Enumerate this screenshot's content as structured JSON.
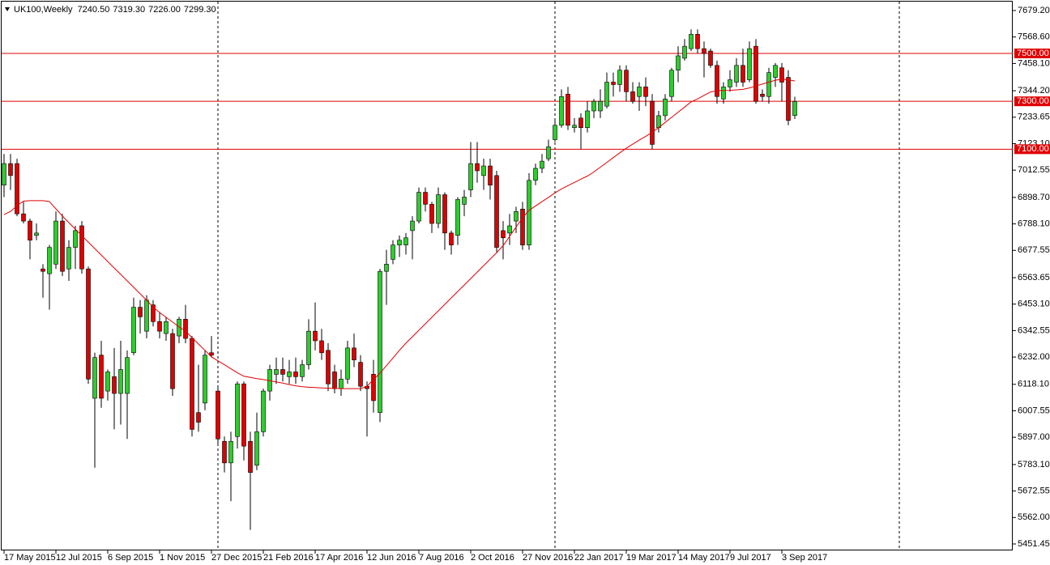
{
  "chart_data": {
    "type": "candlestick",
    "title": "UK100,Weekly",
    "header_ohlc": [
      "7240.50",
      "7319.30",
      "7226.00",
      "7299.30"
    ],
    "up_color": "#2ecc2e",
    "down_color": "#dd0000",
    "ma_color": "#e00000",
    "level_color": "#e00000",
    "ylim": [
      5424.4,
      7706.2
    ],
    "yticks": [
      {
        "value": 7679.2,
        "label": "7679.20"
      },
      {
        "value": 7568.6,
        "label": "7568.60"
      },
      {
        "value": 7458.1,
        "label": "7458.10"
      },
      {
        "value": 7344.2,
        "label": "7344.20"
      },
      {
        "value": 7233.65,
        "label": "7233.65"
      },
      {
        "value": 7123.1,
        "label": "7123.10"
      },
      {
        "value": 7012.55,
        "label": "7012.55"
      },
      {
        "value": 6898.7,
        "label": "6898.70"
      },
      {
        "value": 6788.1,
        "label": "6788.10"
      },
      {
        "value": 6677.55,
        "label": "6677.55"
      },
      {
        "value": 6563.65,
        "label": "6563.65"
      },
      {
        "value": 6453.1,
        "label": "6453.10"
      },
      {
        "value": 6342.55,
        "label": "6342.55"
      },
      {
        "value": 6232,
        "label": "6232.00"
      },
      {
        "value": 6118.1,
        "label": "6118.10"
      },
      {
        "value": 6007.55,
        "label": "6007.55"
      },
      {
        "value": 5897,
        "label": "5897.00"
      },
      {
        "value": 5783.1,
        "label": "5783.10"
      },
      {
        "value": 5672.55,
        "label": "5672.55"
      },
      {
        "value": 5562,
        "label": "5562.00"
      },
      {
        "value": 5451.45,
        "label": "5451.45"
      }
    ],
    "levels": [
      {
        "value": 7500,
        "label": "7500.00"
      },
      {
        "value": 7300,
        "label": "7300.00"
      },
      {
        "value": 7100,
        "label": "7100.00"
      }
    ],
    "categories": [
      "17 May 2015",
      null,
      null,
      null,
      null,
      null,
      null,
      null,
      "12 Jul 2015",
      null,
      null,
      null,
      null,
      null,
      null,
      null,
      "6 Sep 2015",
      null,
      null,
      null,
      null,
      null,
      null,
      null,
      "1 Nov 2015",
      null,
      null,
      null,
      null,
      null,
      null,
      null,
      "27 Dec 2015",
      null,
      null,
      null,
      null,
      null,
      null,
      null,
      "21 Feb 2016",
      null,
      null,
      null,
      null,
      null,
      null,
      null,
      "17 Apr 2016",
      null,
      null,
      null,
      null,
      null,
      null,
      null,
      "12 Jun 2016",
      null,
      null,
      null,
      null,
      null,
      null,
      null,
      "7 Aug 2016",
      null,
      null,
      null,
      null,
      null,
      null,
      null,
      "2 Oct 2016",
      null,
      null,
      null,
      null,
      null,
      null,
      null,
      "27 Nov 2016",
      null,
      null,
      null,
      null,
      null,
      null,
      null,
      "22 Jan 2017",
      null,
      null,
      null,
      null,
      null,
      null,
      null,
      "19 Mar 2017",
      null,
      null,
      null,
      null,
      null,
      null,
      null,
      "14 May 2017",
      null,
      null,
      null,
      null,
      null,
      null,
      null,
      "9 Jul 2017",
      null,
      null,
      null,
      null,
      null,
      null,
      null,
      "3 Sep 2017",
      null,
      null
    ],
    "open": [
      6950,
      7040,
      7040,
      6830,
      6800,
      6740,
      6600,
      6580,
      6620,
      6800,
      6600,
      6690,
      6780,
      6600,
      6060,
      6240,
      6090,
      6150,
      6080,
      6080,
      6250,
      6440,
      6340,
      6450,
      6380,
      6330,
      6330,
      6320,
      6390,
      6310,
      6000,
      6040,
      6250,
      6090,
      5880,
      5790,
      5900,
      6120,
      5880,
      5780,
      5920,
      6090,
      6160,
      6180,
      6150,
      6170,
      6150,
      6200,
      6340,
      6300,
      6260,
      6170,
      6100,
      6140,
      6270,
      6210,
      6110,
      6160,
      6000,
      6590,
      6640,
      6700,
      6700,
      6760,
      6800,
      6920,
      6870,
      6790,
      6910,
      6750,
      6740,
      6870,
      6930,
      7040,
      6990,
      7030,
      6990,
      6760,
      6750,
      6800,
      6850,
      6700,
      6970,
      7020,
      7060,
      7140,
      7200,
      7330,
      7190,
      7230,
      7190,
      7260,
      7260,
      7280,
      7380,
      7370,
      7430,
      7340,
      7320,
      7360,
      7300,
      7190,
      7240,
      7320,
      7430,
      7480,
      7520,
      7580,
      7520,
      7510,
      7450,
      7310,
      7360,
      7380,
      7450,
      7390,
      7530,
      7330,
      7320,
      7400,
      7440,
      7400,
      7240.5
    ],
    "high": [
      7080,
      7080,
      7060,
      6880,
      6810,
      6790,
      6620,
      6700,
      6840,
      6830,
      6720,
      6780,
      6800,
      6610,
      6250,
      6300,
      6180,
      6270,
      6300,
      6260,
      6480,
      6470,
      6490,
      6470,
      6420,
      6400,
      6350,
      6400,
      6450,
      6320,
      6200,
      6260,
      6320,
      6110,
      5900,
      5920,
      6130,
      6130,
      5920,
      6000,
      6100,
      6200,
      6230,
      6230,
      6220,
      6230,
      6220,
      6390,
      6460,
      6350,
      6290,
      6200,
      6180,
      6300,
      6330,
      6240,
      6130,
      6220,
      6600,
      6680,
      6720,
      6740,
      6750,
      6820,
      6940,
      6940,
      6880,
      6940,
      6920,
      6760,
      6900,
      6930,
      7130,
      7130,
      7060,
      7060,
      7010,
      6800,
      6830,
      6860,
      6880,
      7000,
      7040,
      7080,
      7140,
      7220,
      7350,
      7360,
      7230,
      7250,
      7300,
      7310,
      7350,
      7420,
      7420,
      7450,
      7450,
      7380,
      7380,
      7400,
      7330,
      7260,
      7330,
      7440,
      7530,
      7560,
      7600,
      7600,
      7550,
      7520,
      7470,
      7380,
      7430,
      7480,
      7520,
      7550,
      7560,
      7350,
      7440,
      7460,
      7460,
      7430,
      7319.3
    ],
    "low": [
      6900,
      6930,
      6820,
      6790,
      6640,
      6720,
      6480,
      6430,
      6600,
      6570,
      6550,
      6600,
      6580,
      6120,
      5770,
      6020,
      6050,
      5930,
      5950,
      5890,
      6240,
      6330,
      6310,
      6360,
      6310,
      6300,
      6070,
      6290,
      6290,
      5900,
      5920,
      6010,
      6230,
      5870,
      5750,
      5630,
      5850,
      5800,
      5510,
      5760,
      5900,
      6050,
      6120,
      6130,
      6120,
      6120,
      6130,
      6180,
      6260,
      6220,
      6090,
      6080,
      6070,
      6120,
      6190,
      6090,
      5900,
      6000,
      5960,
      6450,
      6620,
      6650,
      6660,
      6640,
      6790,
      6840,
      6750,
      6770,
      6680,
      6660,
      6700,
      6820,
      6900,
      6960,
      6930,
      6890,
      6670,
      6640,
      6700,
      6750,
      6680,
      6680,
      6950,
      7000,
      7050,
      7130,
      7190,
      7180,
      7170,
      7100,
      7170,
      7230,
      7230,
      7270,
      7320,
      7340,
      7300,
      7290,
      7260,
      7280,
      7100,
      7170,
      7220,
      7300,
      7380,
      7470,
      7510,
      7500,
      7400,
      7440,
      7290,
      7290,
      7340,
      7360,
      7360,
      7380,
      7290,
      7300,
      7290,
      7360,
      7300,
      7200,
      7226
    ],
    "close": [
      7040,
      6990,
      6830,
      6800,
      6720,
      6750,
      6590,
      6690,
      6800,
      6590,
      6690,
      6760,
      6600,
      6140,
      6230,
      6060,
      6170,
      6080,
      6180,
      6230,
      6440,
      6400,
      6470,
      6380,
      6340,
      6380,
      6100,
      6390,
      6310,
      5930,
      5960,
      6240,
      6240,
      5890,
      5790,
      5880,
      6120,
      5860,
      5750,
      5920,
      6090,
      6180,
      6180,
      6160,
      6170,
      6150,
      6200,
      6340,
      6300,
      6250,
      6120,
      6100,
      6140,
      6270,
      6220,
      6110,
      6100,
      6050,
      6590,
      6620,
      6700,
      6720,
      6730,
      6800,
      6920,
      6870,
      6790,
      6910,
      6750,
      6700,
      6890,
      6900,
      7040,
      7010,
      7030,
      6950,
      6690,
      6730,
      6780,
      6840,
      6700,
      6970,
      7020,
      7050,
      7110,
      7200,
      7320,
      7200,
      7200,
      7190,
      7260,
      7300,
      7300,
      7380,
      7370,
      7430,
      7340,
      7300,
      7360,
      7320,
      7120,
      7240,
      7310,
      7430,
      7490,
      7530,
      7580,
      7520,
      7500,
      7450,
      7320,
      7360,
      7390,
      7450,
      7380,
      7520,
      7300,
      7320,
      7420,
      7450,
      7380,
      7220,
      7299.3
    ],
    "ma_values": [
      6827,
      6840,
      6864,
      6883,
      6885,
      6885,
      6885,
      6881,
      6851,
      6821,
      6793,
      6766,
      6739,
      6712,
      6685,
      6658,
      6631,
      6604,
      6577,
      6550,
      6523,
      6496,
      6469,
      6441,
      6418,
      6398,
      6378,
      6358,
      6340,
      6313,
      6286,
      6260,
      6233,
      6216,
      6200,
      6183,
      6166,
      6152,
      6147,
      6142,
      6138,
      6133,
      6128,
      6123,
      6117,
      6112,
      6108,
      6106,
      6105,
      6103,
      6102,
      6101,
      6100,
      6100,
      6100,
      6100,
      6110,
      6138,
      6165,
      6196,
      6228,
      6260,
      6290,
      6317,
      6344,
      6371,
      6398,
      6425,
      6452,
      6479,
      6506,
      6533,
      6560,
      6587,
      6614,
      6641,
      6668,
      6697,
      6736,
      6775,
      6814,
      6845,
      6863,
      6881,
      6899,
      6918,
      6934,
      6948,
      6961,
      6975,
      6988,
      7005,
      7025,
      7045,
      7065,
      7085,
      7104,
      7121,
      7138,
      7154,
      7171,
      7190,
      7212,
      7233,
      7255,
      7276,
      7298,
      7310,
      7325,
      7339,
      7344,
      7345,
      7346,
      7348,
      7350,
      7356,
      7364,
      7372,
      7380,
      7388,
      7393,
      7389,
      7385
    ]
  }
}
